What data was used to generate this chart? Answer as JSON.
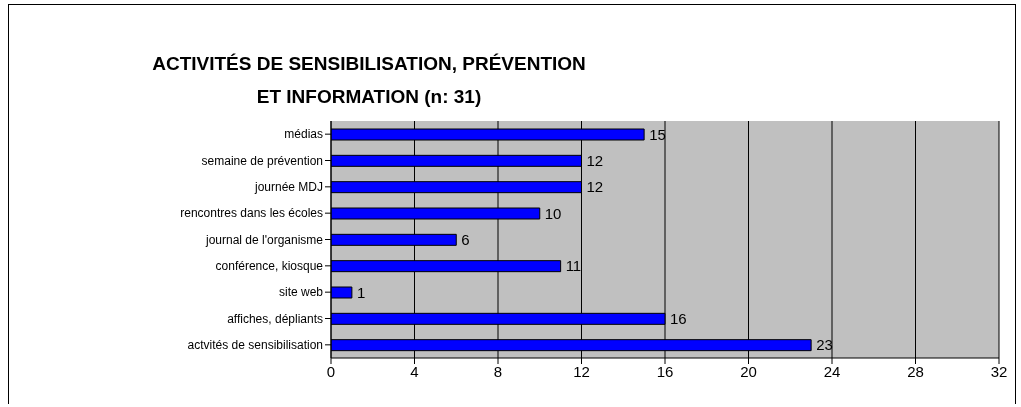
{
  "chart_data": {
    "type": "bar",
    "orientation": "horizontal",
    "title": "ACTIVITÉS DE SENSIBILISATION, PRÉVENTION\nET INFORMATION (n: 31)",
    "categories": [
      "médias",
      "semaine de prévention",
      "journée MDJ",
      "rencontres dans les écoles",
      "journal de l'organisme",
      "conférence, kiosque",
      "site web",
      "affiches, dépliants",
      "actvités de sensibilisation"
    ],
    "values": [
      15,
      12,
      12,
      10,
      6,
      11,
      1,
      16,
      23
    ],
    "color": "#0000ff",
    "xlim": [
      0,
      32
    ],
    "xticks": [
      0,
      4,
      8,
      12,
      16,
      20,
      24,
      28,
      32
    ],
    "grid": "x",
    "data_labels": true,
    "legend": false
  }
}
